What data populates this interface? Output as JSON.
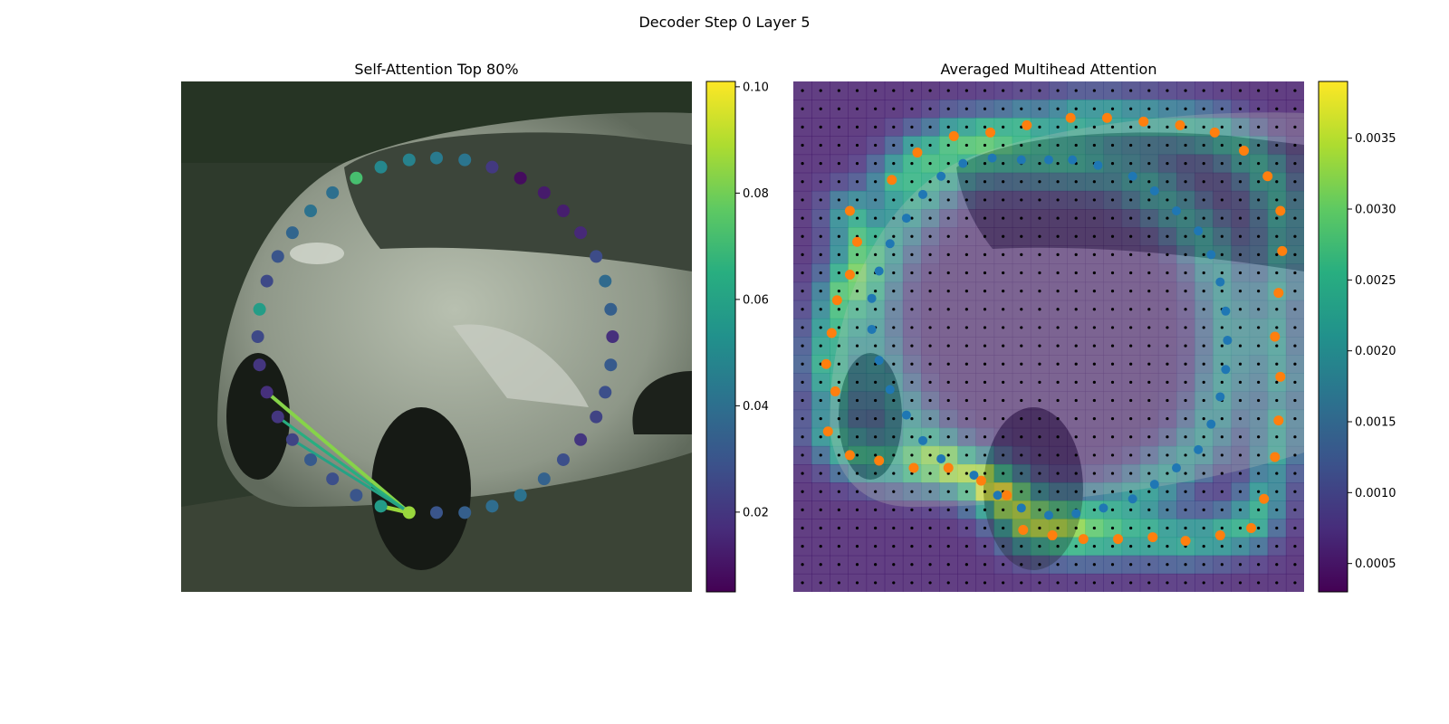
{
  "figure": {
    "title": "Decoder Step 0 Layer 5"
  },
  "chart_data": [
    {
      "type": "scatter",
      "title": "Self-Attention Top 80%",
      "xlim": [
        0,
        56
      ],
      "ylim": [
        56,
        0
      ],
      "colormap": "viridis",
      "colorbar": {
        "range": [
          0.005,
          0.101
        ],
        "ticks": [
          0.02,
          0.04,
          0.06,
          0.08,
          0.1
        ],
        "tick_labels": [
          "0.02",
          "0.04",
          "0.06",
          "0.08",
          "0.10"
        ]
      },
      "background": "photo of a silver car (rendered as a stylized scene)",
      "query_point": [
        25,
        47.3
      ],
      "points": [
        {
          "x": 25.0,
          "y": 47.3,
          "v": 0.086
        },
        {
          "x": 28.0,
          "y": 47.3,
          "v": 0.03
        },
        {
          "x": 31.1,
          "y": 47.3,
          "v": 0.034
        },
        {
          "x": 34.1,
          "y": 46.6,
          "v": 0.039
        },
        {
          "x": 37.2,
          "y": 45.4,
          "v": 0.041
        },
        {
          "x": 39.8,
          "y": 43.6,
          "v": 0.035
        },
        {
          "x": 41.9,
          "y": 41.5,
          "v": 0.028
        },
        {
          "x": 43.8,
          "y": 39.3,
          "v": 0.02
        },
        {
          "x": 45.5,
          "y": 36.8,
          "v": 0.024
        },
        {
          "x": 46.5,
          "y": 34.1,
          "v": 0.028
        },
        {
          "x": 47.1,
          "y": 31.1,
          "v": 0.032
        },
        {
          "x": 47.3,
          "y": 28.0,
          "v": 0.018
        },
        {
          "x": 47.1,
          "y": 25.0,
          "v": 0.034
        },
        {
          "x": 46.5,
          "y": 21.9,
          "v": 0.038
        },
        {
          "x": 45.5,
          "y": 19.2,
          "v": 0.027
        },
        {
          "x": 43.8,
          "y": 16.6,
          "v": 0.016
        },
        {
          "x": 41.9,
          "y": 14.2,
          "v": 0.013
        },
        {
          "x": 39.8,
          "y": 12.2,
          "v": 0.012
        },
        {
          "x": 37.2,
          "y": 10.6,
          "v": 0.008
        },
        {
          "x": 34.1,
          "y": 9.4,
          "v": 0.021
        },
        {
          "x": 31.1,
          "y": 8.6,
          "v": 0.042
        },
        {
          "x": 28.0,
          "y": 8.4,
          "v": 0.044
        },
        {
          "x": 25.0,
          "y": 8.6,
          "v": 0.047
        },
        {
          "x": 21.9,
          "y": 9.4,
          "v": 0.049
        },
        {
          "x": 19.2,
          "y": 10.6,
          "v": 0.072
        },
        {
          "x": 16.6,
          "y": 12.2,
          "v": 0.04
        },
        {
          "x": 14.2,
          "y": 14.2,
          "v": 0.041
        },
        {
          "x": 12.2,
          "y": 16.6,
          "v": 0.036
        },
        {
          "x": 10.6,
          "y": 19.2,
          "v": 0.03
        },
        {
          "x": 9.4,
          "y": 21.9,
          "v": 0.026
        },
        {
          "x": 8.6,
          "y": 25.0,
          "v": 0.058
        },
        {
          "x": 8.4,
          "y": 28.0,
          "v": 0.026
        },
        {
          "x": 8.6,
          "y": 31.1,
          "v": 0.02
        },
        {
          "x": 9.4,
          "y": 34.1,
          "v": 0.018
        },
        {
          "x": 10.6,
          "y": 36.8,
          "v": 0.02
        },
        {
          "x": 12.2,
          "y": 39.3,
          "v": 0.024
        },
        {
          "x": 14.2,
          "y": 41.5,
          "v": 0.032
        },
        {
          "x": 16.6,
          "y": 43.6,
          "v": 0.028
        },
        {
          "x": 19.2,
          "y": 45.4,
          "v": 0.03
        },
        {
          "x": 21.9,
          "y": 46.6,
          "v": 0.057
        }
      ],
      "attention_lines": [
        {
          "to": [
            25.0,
            47.3
          ],
          "v": 0.101,
          "width": 5
        },
        {
          "to": [
            21.9,
            46.6
          ],
          "v": 0.086,
          "width": 4.5
        },
        {
          "to": [
            9.4,
            34.1
          ],
          "v": 0.083,
          "width": 4
        },
        {
          "to": [
            10.6,
            36.8
          ],
          "v": 0.065,
          "width": 3.2
        },
        {
          "to": [
            12.2,
            39.3
          ],
          "v": 0.06,
          "width": 3
        }
      ]
    },
    {
      "type": "heatmap",
      "title": "Averaged Multihead Attention",
      "xlim": [
        0,
        28
      ],
      "ylim": [
        28,
        0
      ],
      "grid_size": [
        28,
        28
      ],
      "colormap": "viridis",
      "colorbar": {
        "range": [
          0.0003,
          0.0039
        ],
        "ticks": [
          0.0005,
          0.001,
          0.0015,
          0.002,
          0.0025,
          0.003,
          0.0035
        ],
        "tick_labels": [
          "0.0005",
          "0.0010",
          "0.0015",
          "0.0020",
          "0.0025",
          "0.0030",
          "0.0035"
        ]
      },
      "blue_points": [
        [
          12.5,
          4.3
        ],
        [
          14.0,
          4.3
        ],
        [
          15.3,
          4.3
        ],
        [
          16.7,
          4.6
        ],
        [
          18.6,
          5.2
        ],
        [
          19.8,
          6.0
        ],
        [
          21.0,
          7.1
        ],
        [
          22.2,
          8.2
        ],
        [
          22.9,
          9.5
        ],
        [
          23.4,
          11.0
        ],
        [
          23.7,
          12.6
        ],
        [
          23.8,
          14.2
        ],
        [
          23.7,
          15.8
        ],
        [
          23.4,
          17.3
        ],
        [
          22.9,
          18.8
        ],
        [
          22.2,
          20.2
        ],
        [
          21.0,
          21.2
        ],
        [
          19.8,
          22.1
        ],
        [
          18.6,
          22.9
        ],
        [
          17.0,
          23.4
        ],
        [
          15.5,
          23.7
        ],
        [
          14.0,
          23.8
        ],
        [
          12.5,
          23.4
        ],
        [
          11.2,
          22.7
        ],
        [
          9.9,
          21.6
        ],
        [
          8.1,
          20.7
        ],
        [
          7.1,
          19.7
        ],
        [
          6.2,
          18.3
        ],
        [
          5.3,
          16.9
        ],
        [
          4.7,
          15.3
        ],
        [
          4.3,
          13.6
        ],
        [
          4.3,
          11.9
        ],
        [
          4.7,
          10.4
        ],
        [
          5.3,
          8.9
        ],
        [
          6.2,
          7.5
        ],
        [
          7.1,
          6.2
        ],
        [
          8.1,
          5.2
        ],
        [
          9.3,
          4.5
        ],
        [
          10.9,
          4.2
        ]
      ],
      "orange_points": [
        [
          15.2,
          2.0
        ],
        [
          17.2,
          2.0
        ],
        [
          19.2,
          2.2
        ],
        [
          21.2,
          2.4
        ],
        [
          23.1,
          2.8
        ],
        [
          24.7,
          3.8
        ],
        [
          26.0,
          5.2
        ],
        [
          26.7,
          7.1
        ],
        [
          26.8,
          9.3
        ],
        [
          26.6,
          11.6
        ],
        [
          26.4,
          14.0
        ],
        [
          26.7,
          16.2
        ],
        [
          26.6,
          18.6
        ],
        [
          26.4,
          20.6
        ],
        [
          25.8,
          22.9
        ],
        [
          25.1,
          24.5
        ],
        [
          23.4,
          24.9
        ],
        [
          21.5,
          25.2
        ],
        [
          19.7,
          25.0
        ],
        [
          17.8,
          25.1
        ],
        [
          15.9,
          25.1
        ],
        [
          14.2,
          24.9
        ],
        [
          12.6,
          24.6
        ],
        [
          11.7,
          22.7
        ],
        [
          10.3,
          21.9
        ],
        [
          8.5,
          21.2
        ],
        [
          6.6,
          21.2
        ],
        [
          4.7,
          20.8
        ],
        [
          3.1,
          20.5
        ],
        [
          1.9,
          19.2
        ],
        [
          2.3,
          17.0
        ],
        [
          1.8,
          15.5
        ],
        [
          2.1,
          13.8
        ],
        [
          2.4,
          12.0
        ],
        [
          3.1,
          10.6
        ],
        [
          3.5,
          8.8
        ],
        [
          3.1,
          7.1
        ],
        [
          5.4,
          5.4
        ],
        [
          6.8,
          3.9
        ],
        [
          8.8,
          3.0
        ],
        [
          10.8,
          2.8
        ],
        [
          12.8,
          2.4
        ]
      ]
    }
  ]
}
